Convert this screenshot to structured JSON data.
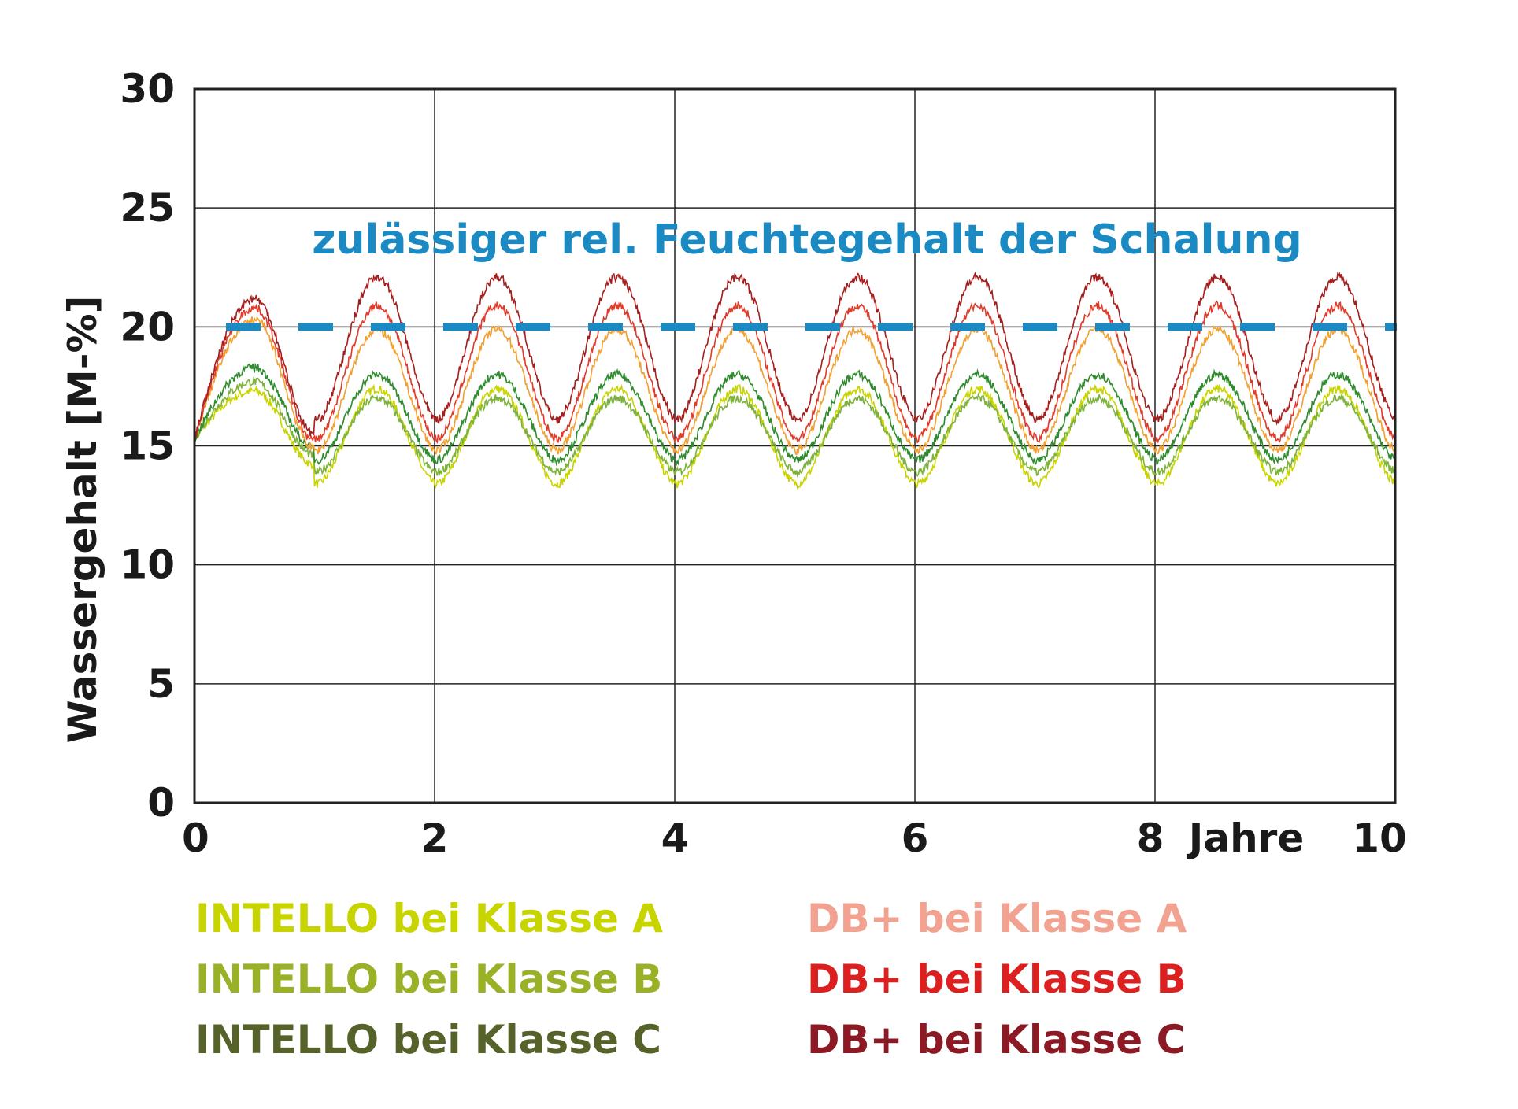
{
  "chart_data": {
    "type": "line",
    "ylabel": "Wassergehalt [M-%]",
    "xunit": "Jahre",
    "xlim": [
      0,
      10
    ],
    "ylim": [
      0,
      30
    ],
    "x_ticks": [
      0,
      2,
      4,
      6,
      8,
      10
    ],
    "y_ticks": [
      0,
      5,
      10,
      15,
      20,
      25,
      30
    ],
    "grid": true,
    "threshold": {
      "value": 20,
      "label": "zulässiger rel. Feuchtegehalt der Schalung",
      "color": "#1b8ac2",
      "style": "dashed"
    },
    "legend_placement": "bottom",
    "series": [
      {
        "name": "INTELLO bei Klasse A",
        "color": "#c8d400",
        "legend_color": "#c8d400",
        "start": 15.3,
        "peak": 17.4,
        "trough": 13.4,
        "first_peak": 17.3,
        "first_trough": 14.2
      },
      {
        "name": "INTELLO bei Klasse B",
        "color": "#7db33a",
        "legend_color": "#98b126",
        "start": 15.3,
        "peak": 17.0,
        "trough": 13.9,
        "first_peak": 17.7,
        "first_trough": 14.6
      },
      {
        "name": "INTELLO bei Klasse C",
        "color": "#2e8b2e",
        "legend_color": "#55632a",
        "start": 15.3,
        "peak": 18.0,
        "trough": 14.4,
        "first_peak": 18.3,
        "first_trough": 14.9
      },
      {
        "name": "DB+ bei Klasse A",
        "color": "#f2a030",
        "legend_color": "#f2a290",
        "start": 15.3,
        "peak": 19.9,
        "trough": 14.8,
        "first_peak": 20.3,
        "first_trough": 14.9
      },
      {
        "name": "DB+ bei Klasse B",
        "color": "#e03a2a",
        "legend_color": "#dc1f1f",
        "start": 15.3,
        "peak": 20.9,
        "trough": 15.3,
        "first_peak": 20.8,
        "first_trough": 15.2
      },
      {
        "name": "DB+ bei Klasse C",
        "color": "#a51e1e",
        "legend_color": "#8b1a24",
        "start": 15.3,
        "peak": 22.1,
        "trough": 16.1,
        "first_peak": 21.2,
        "first_trough": 15.5
      }
    ]
  }
}
